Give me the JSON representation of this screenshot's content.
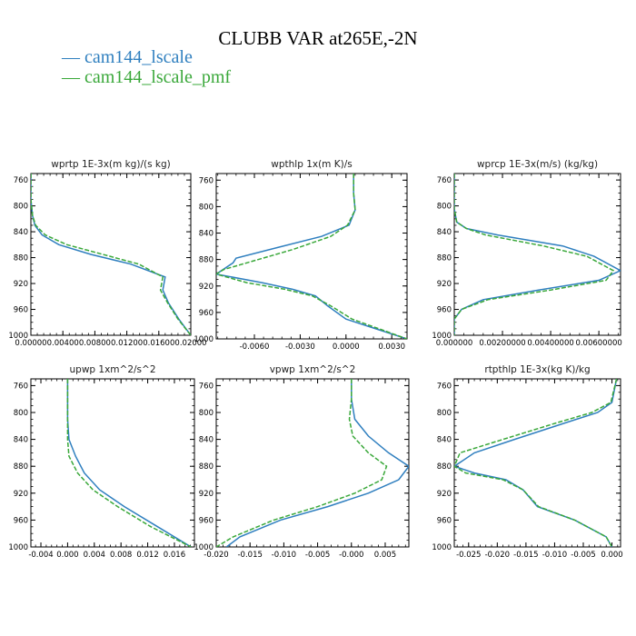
{
  "title": "CLUBB VAR at265E,-2N",
  "colors": {
    "cam144_lscale": "#2f7fbf",
    "cam144_lscale_pmf": "#3aa83a"
  },
  "chart_data": [
    {
      "type": "line",
      "title": "wprtp  1E-3x(m kg)/(s kg)",
      "xlim": [
        0.0,
        0.02
      ],
      "ylim": [
        1000,
        750
      ],
      "xticks": [
        "0.00000",
        "0.00400",
        "0.00800",
        "0.01200",
        "0.01600",
        "0.02000"
      ],
      "xtick_values": [
        0.0,
        0.004,
        0.008,
        0.012,
        0.016,
        0.02
      ],
      "yticks": [
        760,
        800,
        840,
        880,
        920,
        960,
        1000
      ],
      "series": [
        {
          "name": "cam144_lscale",
          "x": [
            0,
            0,
            0.0002,
            0.0005,
            0.0014,
            0.0035,
            0.0075,
            0.0125,
            0.0168,
            0.0165,
            0.0172,
            0.0185,
            0.02
          ],
          "y": [
            750,
            790,
            815,
            830,
            845,
            860,
            875,
            890,
            910,
            930,
            950,
            975,
            1000
          ]
        },
        {
          "name": "cam144_lscale_pmf",
          "x": [
            0,
            0,
            0.0002,
            0.0006,
            0.0018,
            0.0045,
            0.009,
            0.0135,
            0.0165,
            0.0162,
            0.0171,
            0.0184,
            0.02
          ],
          "y": [
            750,
            790,
            815,
            830,
            845,
            860,
            875,
            890,
            910,
            930,
            950,
            975,
            1000
          ]
        }
      ]
    },
    {
      "type": "line",
      "title": "wpthlp  1x(m K)/s",
      "xlim": [
        -0.0085,
        0.004
      ],
      "ylim": [
        1000,
        750
      ],
      "xticks": [
        "-0.0060",
        "-0.0030",
        "0.0000",
        "0.0030"
      ],
      "xtick_values": [
        -0.006,
        -0.003,
        0.0,
        0.003
      ],
      "yticks": [
        760,
        800,
        840,
        880,
        920,
        960,
        1000
      ],
      "series": [
        {
          "name": "cam144_lscale",
          "x": [
            0.0005,
            0.0005,
            0.0006,
            0.0002,
            -0.0016,
            -0.0045,
            -0.0072,
            -0.0074,
            -0.0085,
            -0.0055,
            -0.0035,
            -0.002,
            -0.0012,
            0.0,
            0.002,
            0.004
          ],
          "y": [
            750,
            780,
            805,
            828,
            845,
            862,
            878,
            885,
            902,
            915,
            925,
            935,
            950,
            970,
            985,
            1000
          ]
        },
        {
          "name": "cam144_lscale_pmf",
          "x": [
            0.0005,
            0.0005,
            0.0006,
            0.0001,
            -0.001,
            -0.0035,
            -0.0065,
            -0.008,
            -0.0085,
            -0.0065,
            -0.004,
            -0.0022,
            -0.001,
            0.0004,
            0.0022,
            0.004
          ],
          "y": [
            750,
            780,
            805,
            828,
            845,
            865,
            885,
            895,
            902,
            915,
            925,
            935,
            950,
            970,
            985,
            1000
          ]
        }
      ]
    },
    {
      "type": "line",
      "title": "wprcp  1E-3x(m/s) (kg/kg)",
      "xlim": [
        0.0,
        0.0069
      ],
      "ylim": [
        1000,
        750
      ],
      "xticks": [
        "0.000000",
        "0.00200000",
        "0.00400000",
        "0.00600000"
      ],
      "xtick_values": [
        0.0,
        0.002,
        0.004,
        0.006
      ],
      "yticks": [
        760,
        800,
        840,
        880,
        920,
        960,
        1000
      ],
      "series": [
        {
          "name": "cam144_lscale",
          "x": [
            0,
            0,
            0.0001,
            0.0005,
            0.0018,
            0.0045,
            0.0058,
            0.0069,
            0.006,
            0.0035,
            0.0012,
            0.0003,
            0,
            0
          ],
          "y": [
            750,
            805,
            825,
            835,
            845,
            862,
            878,
            900,
            915,
            930,
            945,
            960,
            975,
            1000
          ]
        },
        {
          "name": "cam144_lscale_pmf",
          "x": [
            0,
            0,
            0.0001,
            0.0005,
            0.0013,
            0.0037,
            0.0055,
            0.0066,
            0.0063,
            0.004,
            0.0014,
            0.0003,
            0,
            0
          ],
          "y": [
            750,
            805,
            825,
            835,
            845,
            862,
            878,
            900,
            915,
            930,
            945,
            960,
            975,
            1000
          ]
        }
      ]
    },
    {
      "type": "line",
      "title": "upwp  1xm^2/s^2",
      "xlim": [
        -0.0055,
        0.019
      ],
      "ylim": [
        1000,
        750
      ],
      "xticks": [
        "-0.004",
        "0.000",
        "0.004",
        "0.008",
        "0.012",
        "0.016"
      ],
      "xtick_values": [
        -0.004,
        0.0,
        0.004,
        0.008,
        0.012,
        0.016
      ],
      "yticks": [
        760,
        800,
        840,
        880,
        920,
        960,
        1000
      ],
      "series": [
        {
          "name": "cam144_lscale",
          "x": [
            0.0,
            0.0,
            0.0002,
            0.0012,
            0.0025,
            0.0048,
            0.0085,
            0.0135,
            0.0185
          ],
          "y": [
            750,
            810,
            840,
            865,
            890,
            915,
            940,
            970,
            1000
          ]
        },
        {
          "name": "cam144_lscale_pmf",
          "x": [
            0.0,
            0.0,
            0.0,
            0.0002,
            0.0015,
            0.0038,
            0.0075,
            0.0125,
            0.0185
          ],
          "y": [
            750,
            810,
            840,
            865,
            890,
            915,
            940,
            970,
            1000
          ]
        }
      ]
    },
    {
      "type": "line",
      "title": "vpwp  1xm^2/s^2",
      "xlim": [
        -0.02,
        0.0085
      ],
      "ylim": [
        1000,
        750
      ],
      "xticks": [
        "-0.020",
        "-0.015",
        "-0.010",
        "-0.005",
        "-0.000",
        "0.005"
      ],
      "xtick_values": [
        -0.02,
        -0.015,
        -0.01,
        -0.005,
        0.0,
        0.005
      ],
      "yticks": [
        760,
        800,
        840,
        880,
        920,
        960,
        1000
      ],
      "series": [
        {
          "name": "cam144_lscale",
          "x": [
            0.0,
            0.0,
            0.0005,
            0.0025,
            0.0055,
            0.0085,
            0.007,
            0.0025,
            -0.0035,
            -0.0105,
            -0.0165,
            -0.0185
          ],
          "y": [
            750,
            780,
            810,
            835,
            860,
            880,
            900,
            920,
            940,
            960,
            985,
            1000
          ]
        },
        {
          "name": "cam144_lscale_pmf",
          "x": [
            0.0,
            0.0,
            -0.0003,
            0.0002,
            0.0025,
            0.0052,
            0.0045,
            0.0005,
            -0.005,
            -0.0115,
            -0.0175,
            -0.02
          ],
          "y": [
            750,
            780,
            810,
            835,
            860,
            880,
            900,
            920,
            940,
            960,
            985,
            1000
          ]
        }
      ]
    },
    {
      "type": "line",
      "title": "rtpthlp  1E-3x(kg K)/kg",
      "xlim": [
        -0.0275,
        0.0015
      ],
      "ylim": [
        1000,
        750
      ],
      "xticks": [
        "-0.025",
        "-0.020",
        "-0.015",
        "-0.010",
        "-0.005",
        "0.000"
      ],
      "xtick_values": [
        -0.025,
        -0.02,
        -0.015,
        -0.01,
        -0.005,
        0.0
      ],
      "yticks": [
        760,
        800,
        840,
        880,
        920,
        960,
        1000
      ],
      "series": [
        {
          "name": "cam144_lscale",
          "x": [
            0.0008,
            0.0,
            -0.0025,
            -0.008,
            -0.017,
            -0.024,
            -0.0275,
            -0.024,
            -0.0185,
            -0.0155,
            -0.013,
            -0.0065,
            -0.001,
            0.0
          ],
          "y": [
            750,
            785,
            800,
            815,
            840,
            860,
            880,
            890,
            900,
            915,
            940,
            960,
            985,
            1000
          ]
        },
        {
          "name": "cam144_lscale_pmf",
          "x": [
            0.0008,
            -0.0002,
            -0.0035,
            -0.0095,
            -0.019,
            -0.0265,
            -0.0275,
            -0.0255,
            -0.019,
            -0.0155,
            -0.0128,
            -0.0065,
            -0.001,
            0.0
          ],
          "y": [
            750,
            785,
            800,
            815,
            840,
            860,
            880,
            890,
            900,
            915,
            940,
            960,
            985,
            1000
          ]
        }
      ]
    }
  ]
}
